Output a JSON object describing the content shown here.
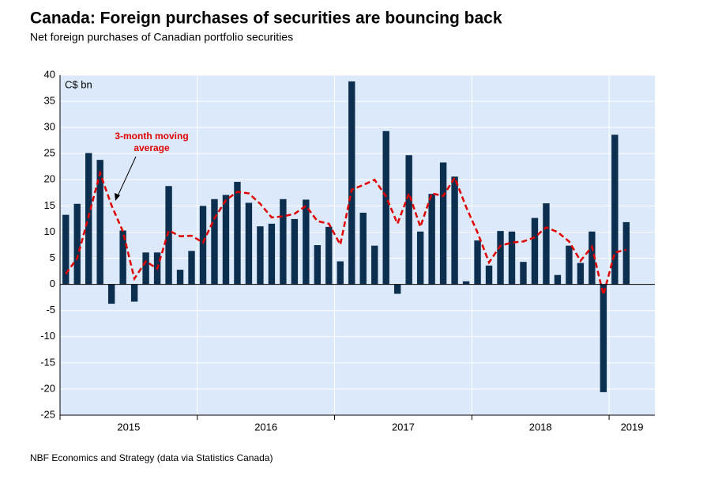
{
  "chart_data": {
    "type": "bar",
    "title": "Canada: Foreign purchases of securities are bouncing back",
    "subtitle": "Net foreign purchases of Canadian portfolio securities",
    "y_unit": "C$ bn",
    "annotation": [
      "3-month moving",
      "average"
    ],
    "source": "NBF Economics and Strategy (data via Statistics Canada)",
    "year_labels": [
      "2015",
      "2016",
      "2017",
      "2018",
      "2019"
    ],
    "categories": [
      null,
      null,
      null,
      null,
      null,
      null,
      null,
      null,
      null,
      null,
      null,
      null,
      null,
      null,
      null,
      null,
      null,
      null,
      null,
      null,
      null,
      null,
      null,
      null,
      null,
      null,
      null,
      null,
      null,
      null,
      null,
      null,
      null,
      null,
      null,
      null,
      null,
      null,
      null,
      null,
      null,
      null,
      null,
      null,
      null,
      null,
      null,
      null,
      null,
      null
    ],
    "series": [
      {
        "name": "Net foreign purchases",
        "color": "#0d2f4f",
        "values": [
          13.3,
          15.4,
          25.1,
          23.8,
          -3.7,
          10.3,
          -3.3,
          6.1,
          6.1,
          18.8,
          2.8,
          6.4,
          15.0,
          16.3,
          17.1,
          19.6,
          15.6,
          11.1,
          11.6,
          16.3,
          12.5,
          16.2,
          7.5,
          11.0,
          4.4,
          38.8,
          13.7,
          7.4,
          29.3,
          -1.8,
          24.7,
          10.1,
          17.3,
          23.3,
          20.6,
          0.6,
          8.4,
          3.6,
          10.2,
          10.1,
          4.3,
          12.7,
          15.5,
          1.8,
          7.4,
          4.1,
          10.1,
          -20.6,
          28.6,
          11.9
        ]
      },
      {
        "name": "3-month moving average",
        "color": "#e00000",
        "type": "line",
        "values": [
          2.0,
          5.0,
          13.0,
          21.3,
          15.1,
          10.1,
          1.1,
          4.4,
          3.0,
          10.3,
          9.2,
          9.3,
          8.0,
          12.6,
          16.1,
          17.7,
          17.4,
          15.4,
          12.8,
          13.0,
          13.5,
          15.0,
          12.1,
          11.6,
          7.6,
          18.1,
          19.0,
          20.0,
          16.8,
          11.6,
          17.4,
          11.0,
          17.4,
          16.9,
          20.4,
          14.8,
          9.9,
          4.2,
          7.4,
          8.0,
          8.2,
          9.0,
          10.9,
          10.0,
          8.2,
          4.5,
          7.2,
          -2.0,
          6.1,
          6.6
        ]
      }
    ],
    "ylim": [
      -25,
      40
    ],
    "yticks": [
      -25,
      -20,
      -15,
      -10,
      -5,
      0,
      5,
      10,
      15,
      20,
      25,
      30,
      35,
      40
    ],
    "grid": true
  }
}
